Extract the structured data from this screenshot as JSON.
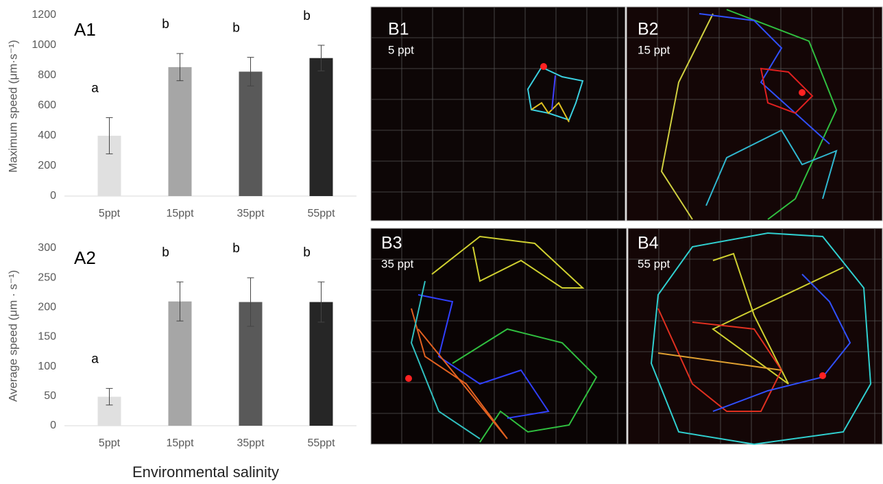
{
  "chart_data": [
    {
      "type": "bar",
      "title": "A1",
      "ylabel": "Maximum speed  (μm·s⁻¹)",
      "categories": [
        "5ppt",
        "15ppt",
        "35ppt",
        "55ppt"
      ],
      "values": [
        400,
        855,
        825,
        915
      ],
      "errors": [
        120,
        90,
        95,
        85
      ],
      "annotations": [
        "a",
        "b",
        "b",
        "b"
      ],
      "colors": [
        "#e0e0e0",
        "#a6a6a6",
        "#595959",
        "#262626"
      ],
      "ylim": [
        0,
        1200
      ],
      "yticks": [
        0,
        200,
        400,
        600,
        800,
        1000,
        1200
      ]
    },
    {
      "type": "bar",
      "title": "A2",
      "ylabel": "Average speed  (μm · s⁻¹)",
      "categories": [
        "5ppt",
        "15ppt",
        "35ppt",
        "55ppt"
      ],
      "values": [
        49,
        210,
        209,
        209
      ],
      "errors": [
        14,
        33,
        41,
        34
      ],
      "annotations": [
        "a",
        "b",
        "b",
        "b"
      ],
      "colors": [
        "#e0e0e0",
        "#a6a6a6",
        "#595959",
        "#262626"
      ],
      "ylim": [
        0,
        300
      ],
      "yticks": [
        0,
        50,
        100,
        150,
        200,
        250,
        300
      ]
    }
  ],
  "xlabel": "Environmental salinity",
  "panels": [
    {
      "label": "B1",
      "salinity": "5 ppt"
    },
    {
      "label": "B2",
      "salinity": "15 ppt"
    },
    {
      "label": "B3",
      "salinity": "35 ppt"
    },
    {
      "label": "B4",
      "salinity": "55 ppt"
    }
  ]
}
